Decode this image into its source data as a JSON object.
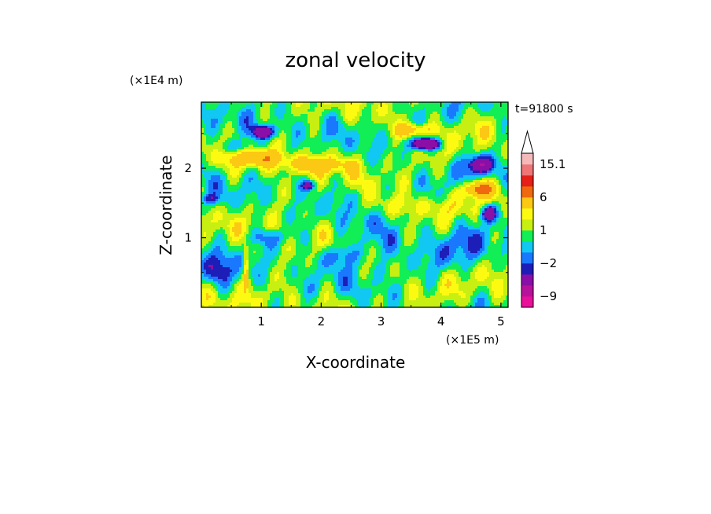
{
  "chart_data": {
    "type": "heatmap",
    "title": "zonal velocity",
    "xlabel": "X-coordinate",
    "ylabel": "Z-coordinate",
    "x_unit": "(×1E5 m)",
    "y_unit": "(×1E4 m)",
    "time_label": "t=91800 s",
    "xlim": [
      0,
      5.12
    ],
    "ylim": [
      0,
      2.95
    ],
    "x_ticks": [
      "1",
      "2",
      "3",
      "4",
      "5"
    ],
    "y_ticks": [
      "1",
      "2"
    ],
    "colorbar": {
      "labels": [
        "15.1",
        "6",
        "1",
        "−2",
        "−9"
      ],
      "levels": [
        -12,
        -9,
        -6,
        -3,
        -2,
        -1,
        0,
        1,
        2,
        3,
        6,
        9,
        12,
        15.1
      ],
      "colors": [
        "#e9119a",
        "#b7129c",
        "#8a0fa6",
        "#1d1db8",
        "#1a78ff",
        "#11c8f3",
        "#12ee55",
        "#c8ef12",
        "#fdfa12",
        "#fbc814",
        "#f0690f",
        "#e52019",
        "#ee7676",
        "#f5b9b9"
      ]
    },
    "field_description_blobs": [
      {
        "x": 1.0,
        "z": 2.5,
        "v": -4
      },
      {
        "x": 1.9,
        "z": 2.3,
        "v": 5
      },
      {
        "x": 3.7,
        "z": 2.35,
        "v": -7
      },
      {
        "x": 4.6,
        "z": 1.6,
        "v": 7
      },
      {
        "x": 4.75,
        "z": 1.3,
        "v": -6
      },
      {
        "x": 2.8,
        "z": 0.8,
        "v": 0
      }
    ]
  }
}
